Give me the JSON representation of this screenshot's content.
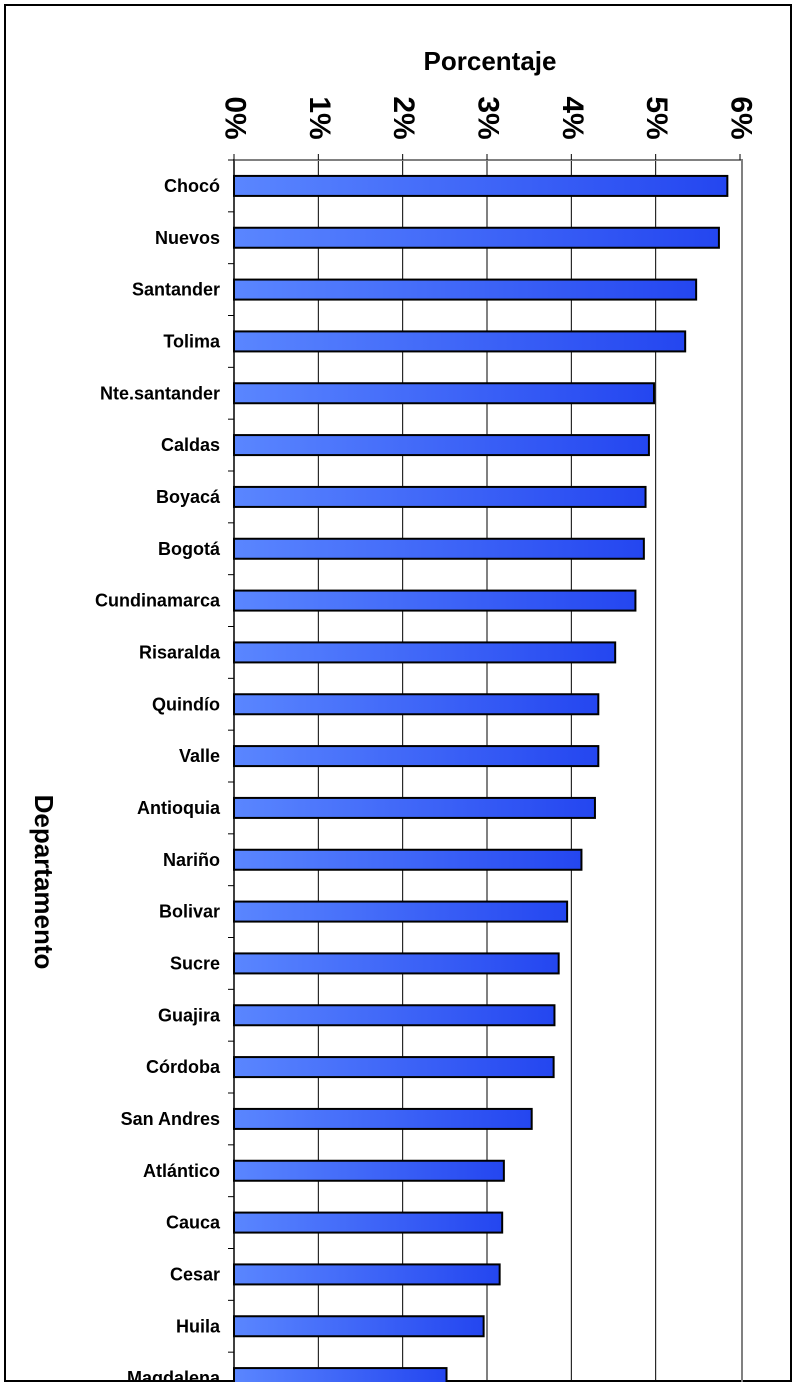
{
  "chart_data": {
    "type": "bar",
    "orientation": "horizontal",
    "xlabel": "Porcentaje",
    "ylabel": "Departamento",
    "xlim": [
      0,
      6
    ],
    "x_ticks": [
      "0%",
      "1%",
      "2%",
      "3%",
      "4%",
      "5%",
      "6%"
    ],
    "x_axis_position": "top",
    "grid": "vertical",
    "bar_color": "#2446f0",
    "categories": [
      "Chocó",
      "Nuevos",
      "Santander",
      "Tolima",
      "Nte.santander",
      "Caldas",
      "Boyacá",
      "Bogotá",
      "Cundinamarca",
      "Risaralda",
      "Quindío",
      "Valle",
      "Antioquia",
      "Nariño",
      "Bolivar",
      "Sucre",
      "Guajira",
      "Córdoba",
      "San Andres",
      "Atlántico",
      "Cauca",
      "Cesar",
      "Huila",
      "Magdalena"
    ],
    "values": [
      5.85,
      5.75,
      5.48,
      5.35,
      4.98,
      4.92,
      4.88,
      4.86,
      4.76,
      4.52,
      4.32,
      4.32,
      4.28,
      4.12,
      3.95,
      3.85,
      3.8,
      3.79,
      3.53,
      3.2,
      3.18,
      3.15,
      2.96,
      2.52
    ]
  }
}
